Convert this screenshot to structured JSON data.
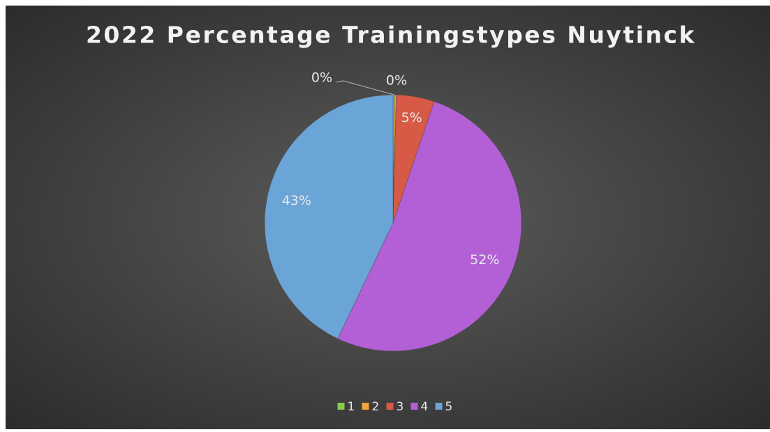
{
  "chart_data": {
    "type": "pie",
    "title": "2022 Percentage Trainingstypes Nuytinck",
    "categories": [
      "1",
      "2",
      "3",
      "4",
      "5"
    ],
    "values": [
      0.2,
      0.2,
      4.8,
      52,
      43
    ],
    "value_labels": [
      "0%",
      "0%",
      "5%",
      "52%",
      "43%"
    ],
    "colors": [
      "#8cc94f",
      "#f2a33a",
      "#d65a45",
      "#b35fd6",
      "#6ba4d6"
    ],
    "legend": "bottom"
  }
}
